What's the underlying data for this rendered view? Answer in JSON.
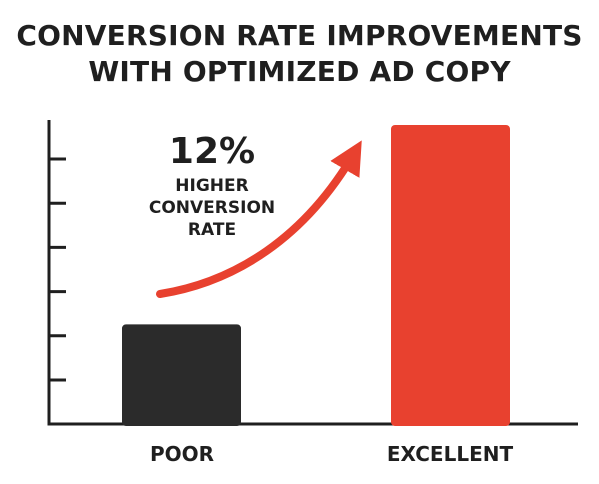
{
  "title_lines": [
    "CONVERSION RATE IMPROVEMENTS",
    "WITH OPTIMIZED AD COPY"
  ],
  "annotation": {
    "value": "12%",
    "lines": [
      "HIGHER",
      "CONVERSION",
      "RATE"
    ]
  },
  "colors": {
    "poor": "#2b2b2b",
    "excellent": "#e8412f",
    "arrow": "#e8412f",
    "axis": "#1f1f1f",
    "text": "#1f1f1f"
  },
  "chart_data": {
    "type": "bar",
    "title": "CONVERSION RATE IMPROVEMENTS WITH OPTIMIZED AD COPY",
    "categories": [
      "POOR",
      "EXCELLENT"
    ],
    "values": [
      23,
      69
    ],
    "ylim": [
      0,
      69
    ],
    "ytick_count": 6,
    "grid": false,
    "annotation": "12% HIGHER CONVERSION RATE",
    "xlabel": "",
    "ylabel": ""
  }
}
